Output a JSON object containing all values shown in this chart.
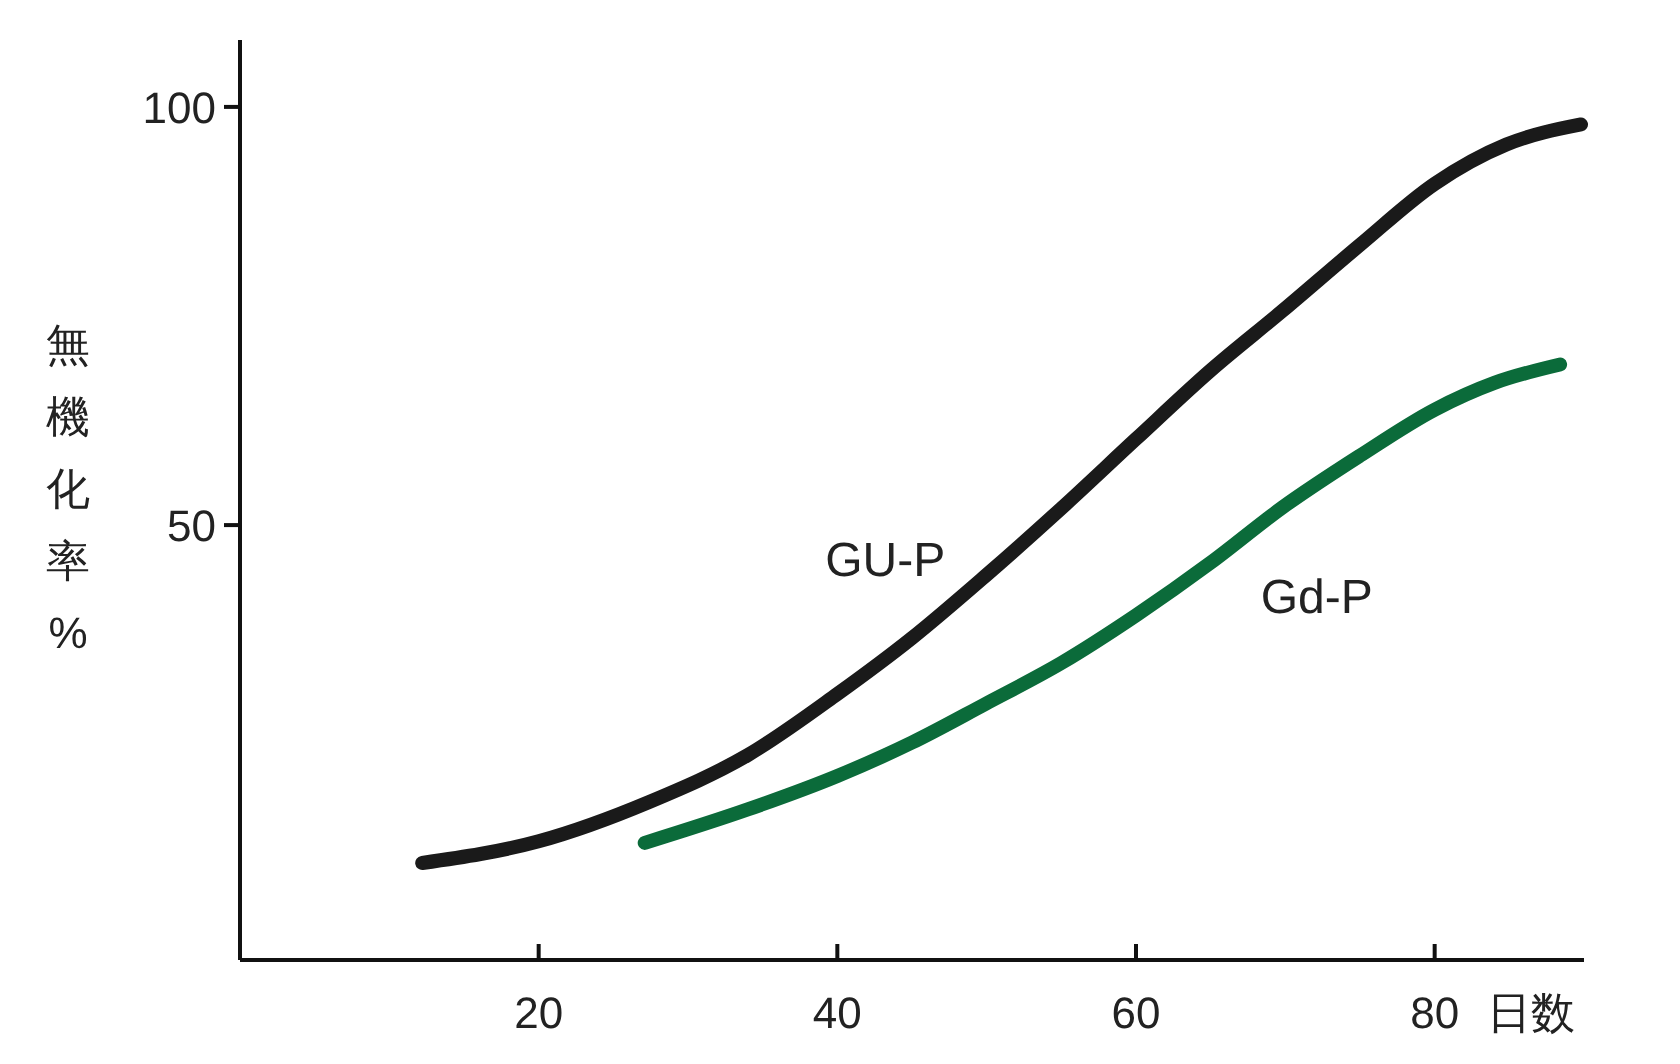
{
  "chart_data": {
    "type": "line",
    "ylabel": "無機化率%",
    "xlabel": "日数",
    "xlim": [
      0,
      90
    ],
    "ylim": [
      -2,
      108
    ],
    "xticks": [
      20,
      40,
      60,
      80
    ],
    "yticks": [
      50,
      100
    ],
    "grid": false,
    "marker": "none",
    "line_style": "solid",
    "series": [
      {
        "name": "GU-P",
        "color": "#1a1a1a",
        "x": [
          12.2,
          20,
          27.4,
          34,
          40,
          45,
          49.9,
          55,
          60,
          65,
          69.8,
          75,
          80,
          84.8,
          89.8
        ],
        "values": [
          9.6,
          12.2,
          16.9,
          22.5,
          29.8,
          36.5,
          43.9,
          52,
          60.3,
          68.5,
          75.6,
          83.5,
          90.8,
          95.5,
          97.9
        ]
      },
      {
        "name": "Gd-P",
        "color": "#0b6b3a",
        "x": [
          27.1,
          34,
          40,
          45,
          49.9,
          55,
          60,
          65,
          69.8,
          75,
          80,
          84,
          88.4
        ],
        "values": [
          12,
          16,
          20,
          24,
          28.6,
          33.5,
          39.2,
          45.5,
          52.1,
          58.3,
          63.8,
          67,
          69.2
        ]
      }
    ]
  }
}
